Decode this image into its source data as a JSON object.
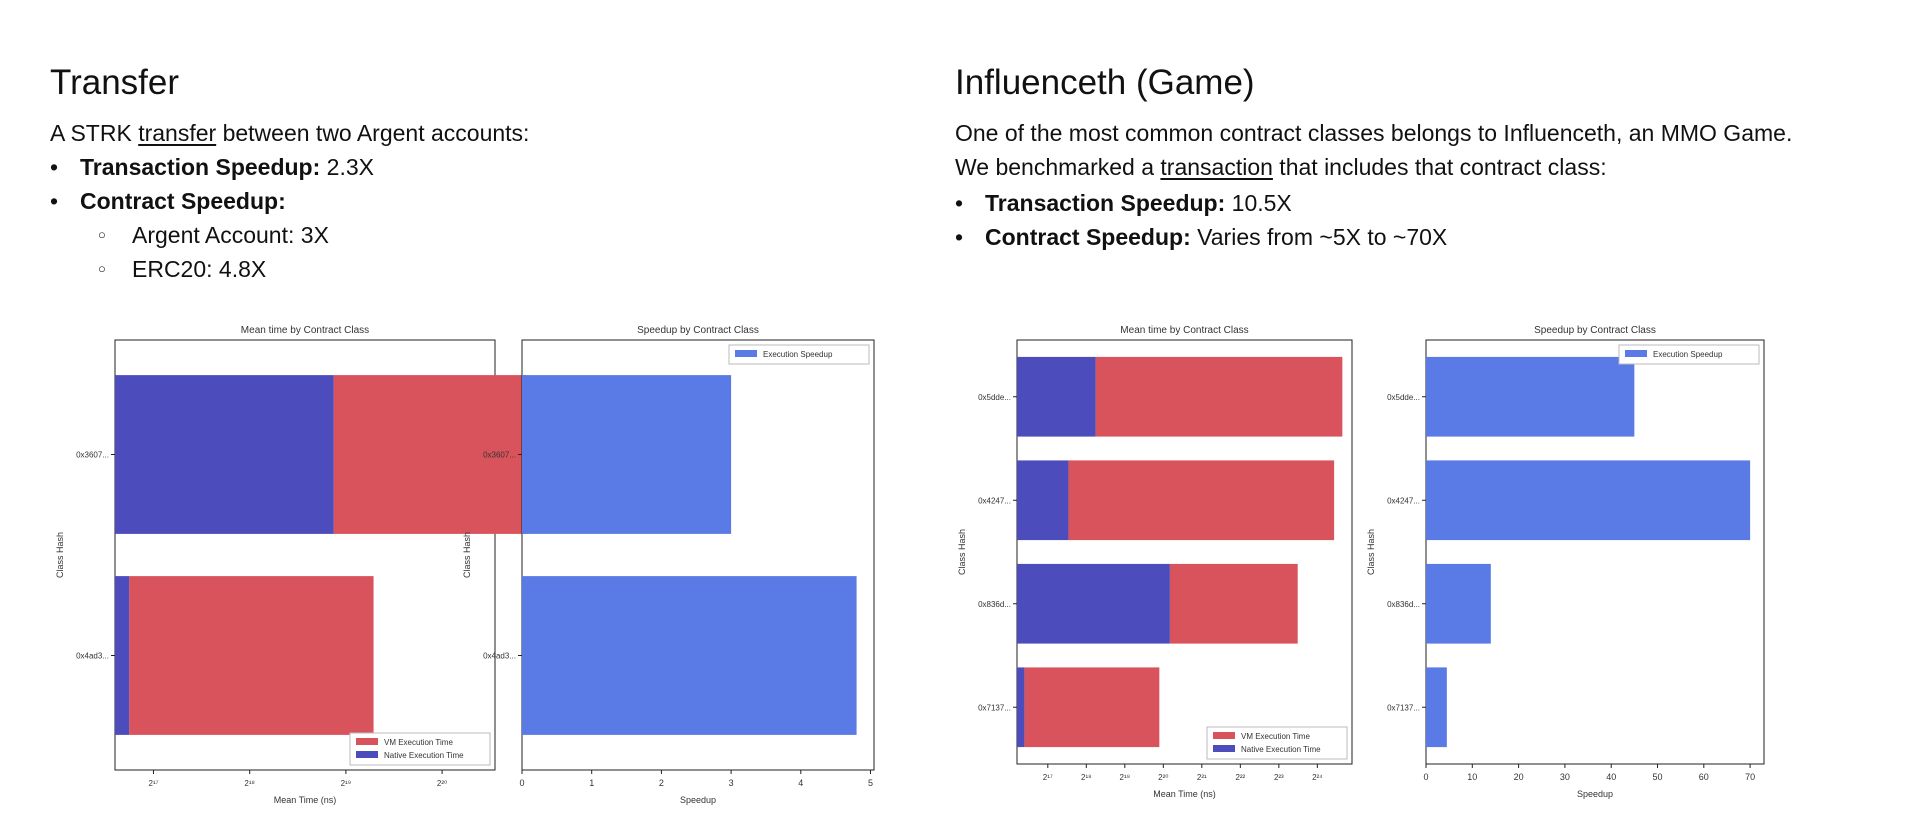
{
  "transfer": {
    "title": "Transfer",
    "intro_prefix": "A STRK ",
    "intro_link": "transfer",
    "intro_suffix": " between two Argent accounts:",
    "bullet1_label": "Transaction Speedup:",
    "bullet1_value": " 2.3X",
    "bullet2_label": "Contract Speedup:",
    "sub1": "Argent Account: 3X",
    "sub2": "ERC20: 4.8X"
  },
  "influenceth": {
    "title": "Influenceth (Game)",
    "line1": "One of the most common contract classes belongs to Influenceth, an MMO Game.",
    "line2_prefix": "We benchmarked a ",
    "line2_link": "transaction",
    "line2_suffix": " that includes that contract class:",
    "bullet1_label": "Transaction Speedup:",
    "bullet1_value": " 10.5X",
    "bullet2_label": "Contract Speedup:",
    "bullet2_value": " Varies from ~5X to ~70X"
  },
  "colors": {
    "native": "#4c4cbc",
    "vm": "#d9535c",
    "speedup": "#5a7be6"
  },
  "chart_data": [
    {
      "id": "transfer-mean",
      "type": "bar",
      "orientation": "horizontal",
      "stacked": true,
      "title": "Mean time by Contract Class",
      "xlabel": "Mean Time (ns)",
      "ylabel": "Class Hash",
      "xscale": "log2",
      "xlim_exp": [
        16.6,
        20.55
      ],
      "xticks": [
        {
          "exp": 17,
          "label": "2¹⁷"
        },
        {
          "exp": 18,
          "label": "2¹⁸"
        },
        {
          "exp": 19,
          "label": "2¹⁹"
        },
        {
          "exp": 20,
          "label": "2²⁰"
        }
      ],
      "categories": [
        "0x3607...",
        "0x4ad3..."
      ],
      "series": [
        {
          "name": "Native Execution Time",
          "color": "#4c4cbc",
          "values": [
            480000,
            110000
          ]
        },
        {
          "name": "VM Execution Time",
          "color": "#d9535c",
          "values": [
            1440000,
            530000
          ]
        }
      ],
      "legend": "lower-right",
      "legend_order": [
        "VM Execution Time",
        "Native Execution Time"
      ]
    },
    {
      "id": "transfer-speedup",
      "type": "bar",
      "orientation": "horizontal",
      "title": "Speedup by Contract Class",
      "xlabel": "Speedup",
      "ylabel": "Class Hash",
      "xlim": [
        0,
        5.05
      ],
      "xticks": [
        0,
        1,
        2,
        3,
        4,
        5
      ],
      "categories": [
        "0x3607...",
        "0x4ad3..."
      ],
      "series": [
        {
          "name": "Execution Speedup",
          "color": "#5a7be6",
          "values": [
            3.0,
            4.8
          ]
        }
      ],
      "legend": "upper-right"
    },
    {
      "id": "influenceth-mean",
      "type": "bar",
      "orientation": "horizontal",
      "stacked": true,
      "title": "Mean time by Contract Class",
      "xlabel": "Mean Time (ns)",
      "ylabel": "Class Hash",
      "xscale": "log2",
      "xlim_exp": [
        16.2,
        24.9
      ],
      "xticks": [
        {
          "exp": 17,
          "label": "2¹⁷"
        },
        {
          "exp": 18,
          "label": "2¹⁸"
        },
        {
          "exp": 19,
          "label": "2¹⁹"
        },
        {
          "exp": 20,
          "label": "2²⁰"
        },
        {
          "exp": 21,
          "label": "2²¹"
        },
        {
          "exp": 22,
          "label": "2²²"
        },
        {
          "exp": 23,
          "label": "2²³"
        },
        {
          "exp": 24,
          "label": "2²⁴"
        }
      ],
      "categories": [
        "0x5dde...",
        "0x4247...",
        "0x836d...",
        "0x7137..."
      ],
      "series": [
        {
          "name": "Native Execution Time",
          "color": "#4c4cbc",
          "values": [
            310000,
            190000,
            1180000,
            86000
          ]
        },
        {
          "name": "VM Execution Time",
          "color": "#d9535c",
          "values": [
            26000000,
            22500000,
            10600000,
            890000
          ]
        }
      ],
      "legend": "lower-right",
      "legend_order": [
        "VM Execution Time",
        "Native Execution Time"
      ]
    },
    {
      "id": "influenceth-speedup",
      "type": "bar",
      "orientation": "horizontal",
      "title": "Speedup by Contract Class",
      "xlabel": "Speedup",
      "ylabel": "Class Hash",
      "xlim": [
        0,
        73
      ],
      "xticks": [
        0,
        10,
        20,
        30,
        40,
        50,
        60,
        70
      ],
      "categories": [
        "0x5dde...",
        "0x4247...",
        "0x836d...",
        "0x7137..."
      ],
      "series": [
        {
          "name": "Execution Speedup",
          "color": "#5a7be6",
          "values": [
            45,
            70,
            14,
            4.5
          ]
        }
      ],
      "legend": "upper-right"
    }
  ]
}
